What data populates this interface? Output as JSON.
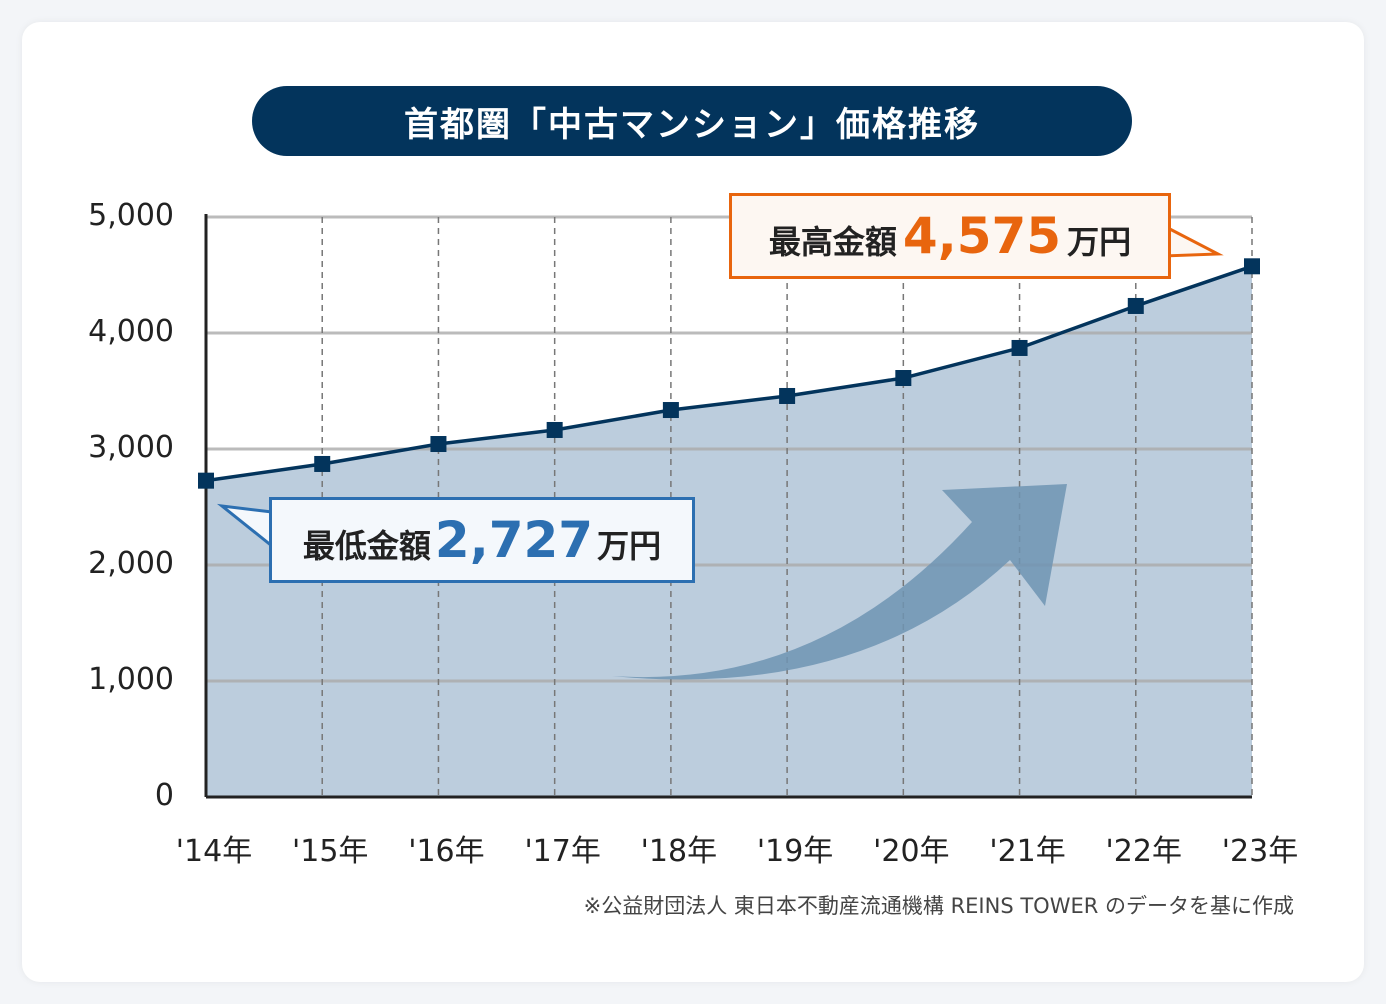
{
  "title": "首都圏「中古マンション」価格推移",
  "note": "※公益財団法人 東日本不動産流通機構 REINS TOWER のデータを基に作成",
  "callouts": {
    "max": {
      "label": "最高金額",
      "value": "4,575",
      "unit": "万円"
    },
    "min": {
      "label": "最低金額",
      "value": "2,727",
      "unit": "万円"
    }
  },
  "colors": {
    "line": "#03345c",
    "area": "#bccddd",
    "max": "#e8650e",
    "min": "#2c6fb1",
    "arrow": "#6f94b3"
  },
  "chart_data": {
    "type": "area",
    "categories": [
      "'14年",
      "'15年",
      "'16年",
      "'17年",
      "'18年",
      "'19年",
      "'20年",
      "'21年",
      "'22年",
      "'23年"
    ],
    "values": [
      2727,
      2871,
      3043,
      3164,
      3336,
      3457,
      3612,
      3871,
      4233,
      4575
    ],
    "ylim": [
      0,
      5000
    ],
    "yticks": [
      "0",
      "1,000",
      "2,000",
      "3,000",
      "4,000",
      "5,000"
    ],
    "grid": true
  }
}
